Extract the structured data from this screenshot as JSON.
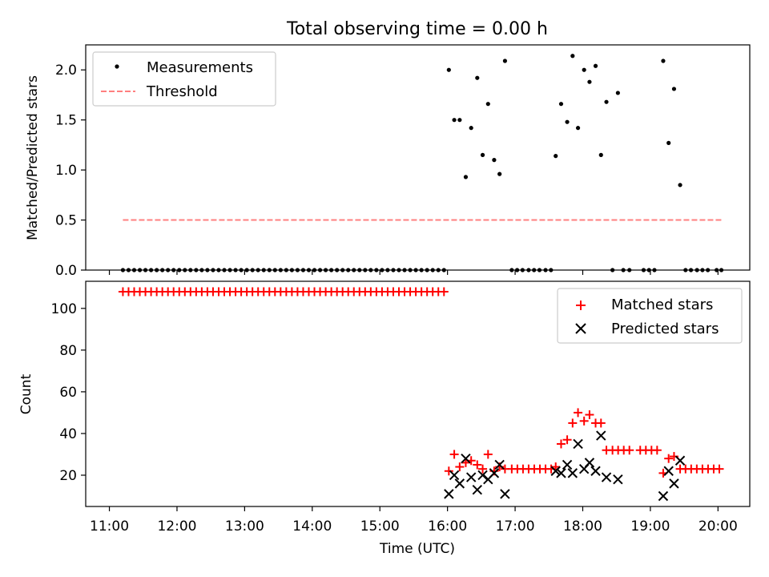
{
  "chart_data": [
    {
      "type": "scatter",
      "title": "Total observing time = 0.00 h",
      "xlabel": "",
      "ylabel": "Matched/Predicted stars",
      "xlim": [
        10.65,
        20.47
      ],
      "ylim": [
        0,
        2.25
      ],
      "yticks": [
        0.0,
        0.5,
        1.0,
        1.5,
        2.0
      ],
      "ytick_labels": [
        "0.0",
        "0.5",
        "1.0",
        "1.5",
        "2.0"
      ],
      "xticks": [
        11,
        12,
        13,
        14,
        15,
        16,
        17,
        18,
        19,
        20
      ],
      "grid": false,
      "legend_position": "top-left",
      "legend": [
        "Measurements",
        "Threshold"
      ],
      "colors": {
        "measurements": "#000000",
        "threshold": "#ff7f7f"
      },
      "threshold": {
        "name": "Threshold",
        "value": 0.5,
        "x": [
          11.2,
          20.05
        ]
      },
      "series": [
        {
          "name": "Measurements",
          "zero_run": {
            "x_start": 11.2,
            "x_end": 15.95,
            "step": 0.0833,
            "value": 0
          },
          "points": [
            {
              "x": 16.02,
              "y": 2.0
            },
            {
              "x": 16.1,
              "y": 1.5
            },
            {
              "x": 16.18,
              "y": 1.5
            },
            {
              "x": 16.27,
              "y": 0.93
            },
            {
              "x": 16.35,
              "y": 1.42
            },
            {
              "x": 16.44,
              "y": 1.92
            },
            {
              "x": 16.52,
              "y": 1.15
            },
            {
              "x": 16.6,
              "y": 1.66
            },
            {
              "x": 16.69,
              "y": 1.1
            },
            {
              "x": 16.77,
              "y": 0.96
            },
            {
              "x": 16.85,
              "y": 2.09
            },
            {
              "x": 16.95,
              "y": 0
            },
            {
              "x": 17.03,
              "y": 0
            },
            {
              "x": 17.11,
              "y": 0
            },
            {
              "x": 17.2,
              "y": 0
            },
            {
              "x": 17.28,
              "y": 0
            },
            {
              "x": 17.36,
              "y": 0
            },
            {
              "x": 17.45,
              "y": 0
            },
            {
              "x": 17.53,
              "y": 0
            },
            {
              "x": 17.6,
              "y": 1.14
            },
            {
              "x": 17.68,
              "y": 1.66
            },
            {
              "x": 17.77,
              "y": 1.48
            },
            {
              "x": 17.85,
              "y": 2.14
            },
            {
              "x": 17.93,
              "y": 1.42
            },
            {
              "x": 18.02,
              "y": 2.0
            },
            {
              "x": 18.1,
              "y": 1.88
            },
            {
              "x": 18.19,
              "y": 2.04
            },
            {
              "x": 18.27,
              "y": 1.15
            },
            {
              "x": 18.35,
              "y": 1.68
            },
            {
              "x": 18.44,
              "y": 0
            },
            {
              "x": 18.52,
              "y": 1.77
            },
            {
              "x": 18.6,
              "y": 0
            },
            {
              "x": 18.69,
              "y": 0
            },
            {
              "x": 18.9,
              "y": 0
            },
            {
              "x": 18.98,
              "y": 0
            },
            {
              "x": 19.06,
              "y": 0
            },
            {
              "x": 19.19,
              "y": 2.09
            },
            {
              "x": 19.27,
              "y": 1.27
            },
            {
              "x": 19.35,
              "y": 1.81
            },
            {
              "x": 19.44,
              "y": 0.85
            },
            {
              "x": 19.52,
              "y": 0
            },
            {
              "x": 19.6,
              "y": 0
            },
            {
              "x": 19.69,
              "y": 0
            },
            {
              "x": 19.77,
              "y": 0
            },
            {
              "x": 19.85,
              "y": 0
            },
            {
              "x": 19.98,
              "y": 0
            },
            {
              "x": 20.05,
              "y": 0
            }
          ]
        }
      ]
    },
    {
      "type": "scatter",
      "title": "",
      "xlabel": "Time (UTC)",
      "ylabel": "Count",
      "xlim": [
        10.65,
        20.47
      ],
      "ylim": [
        5,
        113
      ],
      "yticks": [
        20,
        40,
        60,
        80,
        100
      ],
      "xticks": [
        11,
        12,
        13,
        14,
        15,
        16,
        17,
        18,
        19,
        20
      ],
      "xtick_labels": [
        "11:00",
        "12:00",
        "13:00",
        "14:00",
        "15:00",
        "16:00",
        "17:00",
        "18:00",
        "19:00",
        "20:00"
      ],
      "grid": false,
      "legend_position": "top-right",
      "legend": [
        "Matched stars",
        "Predicted stars"
      ],
      "colors": {
        "matched": "#ff0000",
        "predicted": "#000000"
      },
      "series": [
        {
          "name": "Matched stars",
          "constant_runs": [
            {
              "x_start": 11.2,
              "x_end": 15.95,
              "step": 0.0833,
              "value": 108
            },
            {
              "x_start": 16.95,
              "x_end": 17.53,
              "step": 0.0833,
              "value": 23
            },
            {
              "x_start": 18.44,
              "x_end": 18.69,
              "step": 0.0833,
              "value": 32
            },
            {
              "x_start": 18.85,
              "x_end": 19.1,
              "step": 0.0833,
              "value": 32
            },
            {
              "x_start": 19.52,
              "x_end": 20.05,
              "step": 0.0833,
              "value": 23
            }
          ],
          "points": [
            {
              "x": 16.02,
              "y": 22
            },
            {
              "x": 16.1,
              "y": 30
            },
            {
              "x": 16.18,
              "y": 24
            },
            {
              "x": 16.27,
              "y": 26
            },
            {
              "x": 16.35,
              "y": 27
            },
            {
              "x": 16.44,
              "y": 25
            },
            {
              "x": 16.52,
              "y": 23
            },
            {
              "x": 16.6,
              "y": 30
            },
            {
              "x": 16.69,
              "y": 22
            },
            {
              "x": 16.77,
              "y": 24
            },
            {
              "x": 16.85,
              "y": 23
            },
            {
              "x": 17.6,
              "y": 24
            },
            {
              "x": 17.68,
              "y": 35
            },
            {
              "x": 17.77,
              "y": 37
            },
            {
              "x": 17.85,
              "y": 45
            },
            {
              "x": 17.93,
              "y": 50
            },
            {
              "x": 18.02,
              "y": 46
            },
            {
              "x": 18.1,
              "y": 49
            },
            {
              "x": 18.19,
              "y": 45
            },
            {
              "x": 18.27,
              "y": 45
            },
            {
              "x": 18.35,
              "y": 32
            },
            {
              "x": 19.19,
              "y": 21
            },
            {
              "x": 19.27,
              "y": 28
            },
            {
              "x": 19.35,
              "y": 29
            },
            {
              "x": 19.44,
              "y": 23
            }
          ]
        },
        {
          "name": "Predicted stars",
          "points": [
            {
              "x": 16.02,
              "y": 11
            },
            {
              "x": 16.1,
              "y": 20
            },
            {
              "x": 16.18,
              "y": 16
            },
            {
              "x": 16.27,
              "y": 28
            },
            {
              "x": 16.35,
              "y": 19
            },
            {
              "x": 16.44,
              "y": 13
            },
            {
              "x": 16.52,
              "y": 20
            },
            {
              "x": 16.6,
              "y": 18
            },
            {
              "x": 16.69,
              "y": 21
            },
            {
              "x": 16.77,
              "y": 25
            },
            {
              "x": 16.85,
              "y": 11
            },
            {
              "x": 17.6,
              "y": 22
            },
            {
              "x": 17.68,
              "y": 21
            },
            {
              "x": 17.77,
              "y": 25
            },
            {
              "x": 17.85,
              "y": 21
            },
            {
              "x": 17.93,
              "y": 35
            },
            {
              "x": 18.02,
              "y": 23
            },
            {
              "x": 18.1,
              "y": 26
            },
            {
              "x": 18.19,
              "y": 22
            },
            {
              "x": 18.27,
              "y": 39
            },
            {
              "x": 18.35,
              "y": 19
            },
            {
              "x": 18.52,
              "y": 18
            },
            {
              "x": 19.19,
              "y": 10
            },
            {
              "x": 19.27,
              "y": 22
            },
            {
              "x": 19.35,
              "y": 16
            },
            {
              "x": 19.44,
              "y": 27
            }
          ]
        }
      ]
    }
  ]
}
